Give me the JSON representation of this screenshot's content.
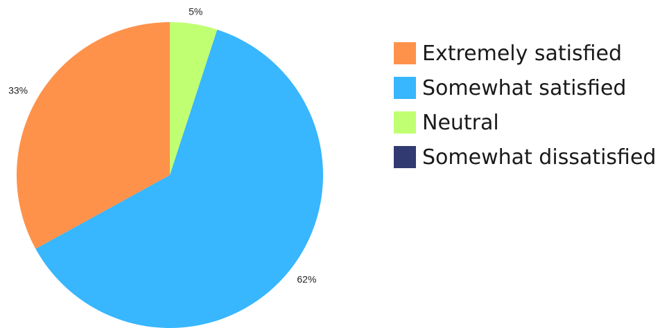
{
  "chart_data": {
    "type": "pie",
    "categories": [
      "Extremely satisfied",
      "Somewhat satisfied",
      "Neutral",
      "Somewhat dissatisfied"
    ],
    "values": [
      33,
      62,
      5,
      0
    ],
    "value_labels": [
      "33%",
      "62%",
      "5%",
      ""
    ],
    "colors": [
      "#fe924b",
      "#38b6fe",
      "#c1ff72",
      "#313a71"
    ],
    "slice_order_clockwise_from_top": [
      "Neutral",
      "Somewhat satisfied",
      "Extremely satisfied"
    ],
    "legend_position": "right",
    "title": ""
  },
  "legend": {
    "items": [
      {
        "label": "Extremely satisfied",
        "color": "#fe924b"
      },
      {
        "label": "Somewhat satisfied",
        "color": "#38b6fe"
      },
      {
        "label": "Neutral",
        "color": "#c1ff72"
      },
      {
        "label": "Somewhat dissatisfied",
        "color": "#313a71"
      }
    ]
  }
}
